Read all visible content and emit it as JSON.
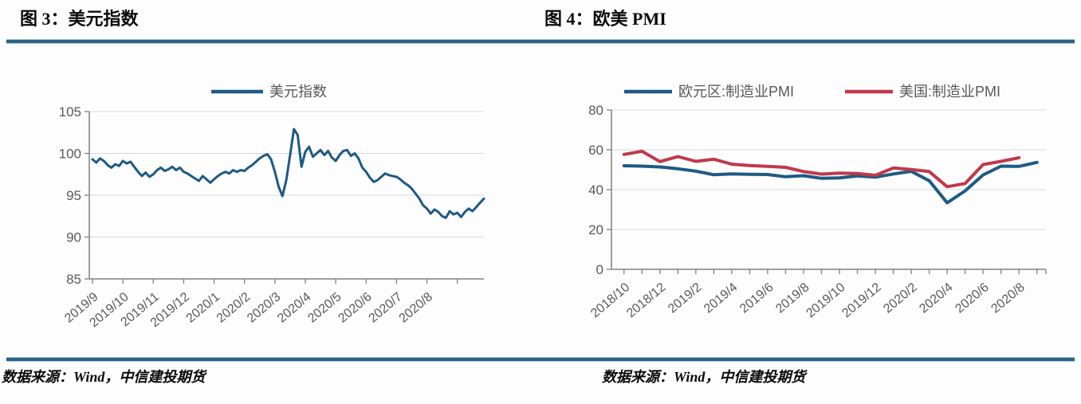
{
  "colors": {
    "rule_blue": "#2d6384",
    "line_blue": "#1e5a84",
    "line_red": "#c0394b",
    "gridline": "#d9d9d9",
    "axis": "#808080",
    "tick_label": "#595959",
    "legend_text": "#595959"
  },
  "footer": {
    "left": "数据来源：Wind，中信建投期货",
    "right": "数据来源：Wind，中信建投期货"
  },
  "chart_data": [
    {
      "type": "line",
      "title": "图 3：美元指数",
      "xlabel": "",
      "ylabel": "",
      "ylim": [
        85,
        105
      ],
      "yticks": [
        85,
        90,
        95,
        100,
        105
      ],
      "grid": true,
      "legend_position": "top",
      "x_tick_labels": [
        "2019/9",
        "2019/10",
        "2019/11",
        "2019/12",
        "2020/1",
        "2020/2",
        "2020/3",
        "2020/4",
        "2020/5",
        "2020/6",
        "2020/7",
        "2020/8"
      ],
      "x_note": "daily data, 8 samples per month, 2019/9 through 2020/9",
      "series": [
        {
          "name": "美元指数",
          "color": "#1e5a84",
          "values": [
            99.3,
            98.9,
            99.4,
            99.1,
            98.6,
            98.3,
            98.7,
            98.5,
            99.1,
            98.8,
            99.0,
            98.4,
            97.8,
            97.3,
            97.7,
            97.2,
            97.5,
            98.0,
            98.3,
            97.9,
            98.1,
            98.4,
            98.0,
            98.3,
            97.8,
            97.6,
            97.3,
            97.0,
            96.7,
            97.3,
            96.9,
            96.5,
            96.9,
            97.3,
            97.6,
            97.8,
            97.6,
            98.0,
            97.8,
            98.0,
            97.9,
            98.3,
            98.6,
            99.0,
            99.4,
            99.7,
            99.9,
            99.3,
            97.8,
            96.0,
            94.9,
            96.8,
            99.8,
            102.9,
            102.2,
            98.4,
            100.2,
            100.8,
            99.6,
            100.0,
            100.4,
            99.8,
            100.3,
            99.5,
            99.1,
            99.8,
            100.3,
            100.4,
            99.7,
            100.0,
            99.4,
            98.3,
            97.8,
            97.1,
            96.6,
            96.8,
            97.2,
            97.6,
            97.4,
            97.3,
            97.2,
            96.9,
            96.5,
            96.2,
            95.8,
            95.2,
            94.6,
            93.8,
            93.4,
            92.8,
            93.3,
            93.0,
            92.5,
            92.3,
            93.1,
            92.7,
            92.9,
            92.4,
            93.0,
            93.4,
            93.1,
            93.6,
            94.1,
            94.6
          ]
        }
      ]
    },
    {
      "type": "line",
      "title": "图 4：欧美 PMI",
      "xlabel": "",
      "ylabel": "",
      "ylim": [
        0,
        80
      ],
      "yticks": [
        0,
        20,
        40,
        60,
        80
      ],
      "grid": true,
      "legend_position": "top",
      "categories": [
        "2018/10",
        "2018/11",
        "2018/12",
        "2019/1",
        "2019/2",
        "2019/3",
        "2019/4",
        "2019/5",
        "2019/6",
        "2019/7",
        "2019/8",
        "2019/9",
        "2019/10",
        "2019/11",
        "2019/12",
        "2020/1",
        "2020/2",
        "2020/3",
        "2020/4",
        "2020/5",
        "2020/6",
        "2020/7",
        "2020/8",
        "2020/9"
      ],
      "x_tick_labels": [
        "2018/10",
        "2018/12",
        "2019/2",
        "2019/4",
        "2019/6",
        "2019/8",
        "2019/10",
        "2019/12",
        "2020/2",
        "2020/4",
        "2020/6",
        "2020/8"
      ],
      "series": [
        {
          "name": "欧元区:制造业PMI",
          "color": "#1e5a84",
          "values": [
            52.0,
            51.8,
            51.4,
            50.5,
            49.3,
            47.5,
            47.9,
            47.7,
            47.6,
            46.5,
            47.0,
            45.7,
            45.9,
            46.9,
            46.3,
            47.9,
            49.2,
            44.5,
            33.4,
            39.4,
            47.4,
            51.8,
            51.7,
            53.7
          ]
        },
        {
          "name": "美国:制造业PMI",
          "color": "#c0394b",
          "values": [
            57.7,
            59.3,
            54.1,
            56.6,
            54.2,
            55.3,
            52.8,
            52.1,
            51.7,
            51.2,
            49.1,
            47.8,
            48.3,
            48.1,
            47.2,
            50.9,
            50.1,
            49.1,
            41.5,
            43.1,
            52.6,
            54.2,
            56.0
          ]
        }
      ]
    }
  ]
}
